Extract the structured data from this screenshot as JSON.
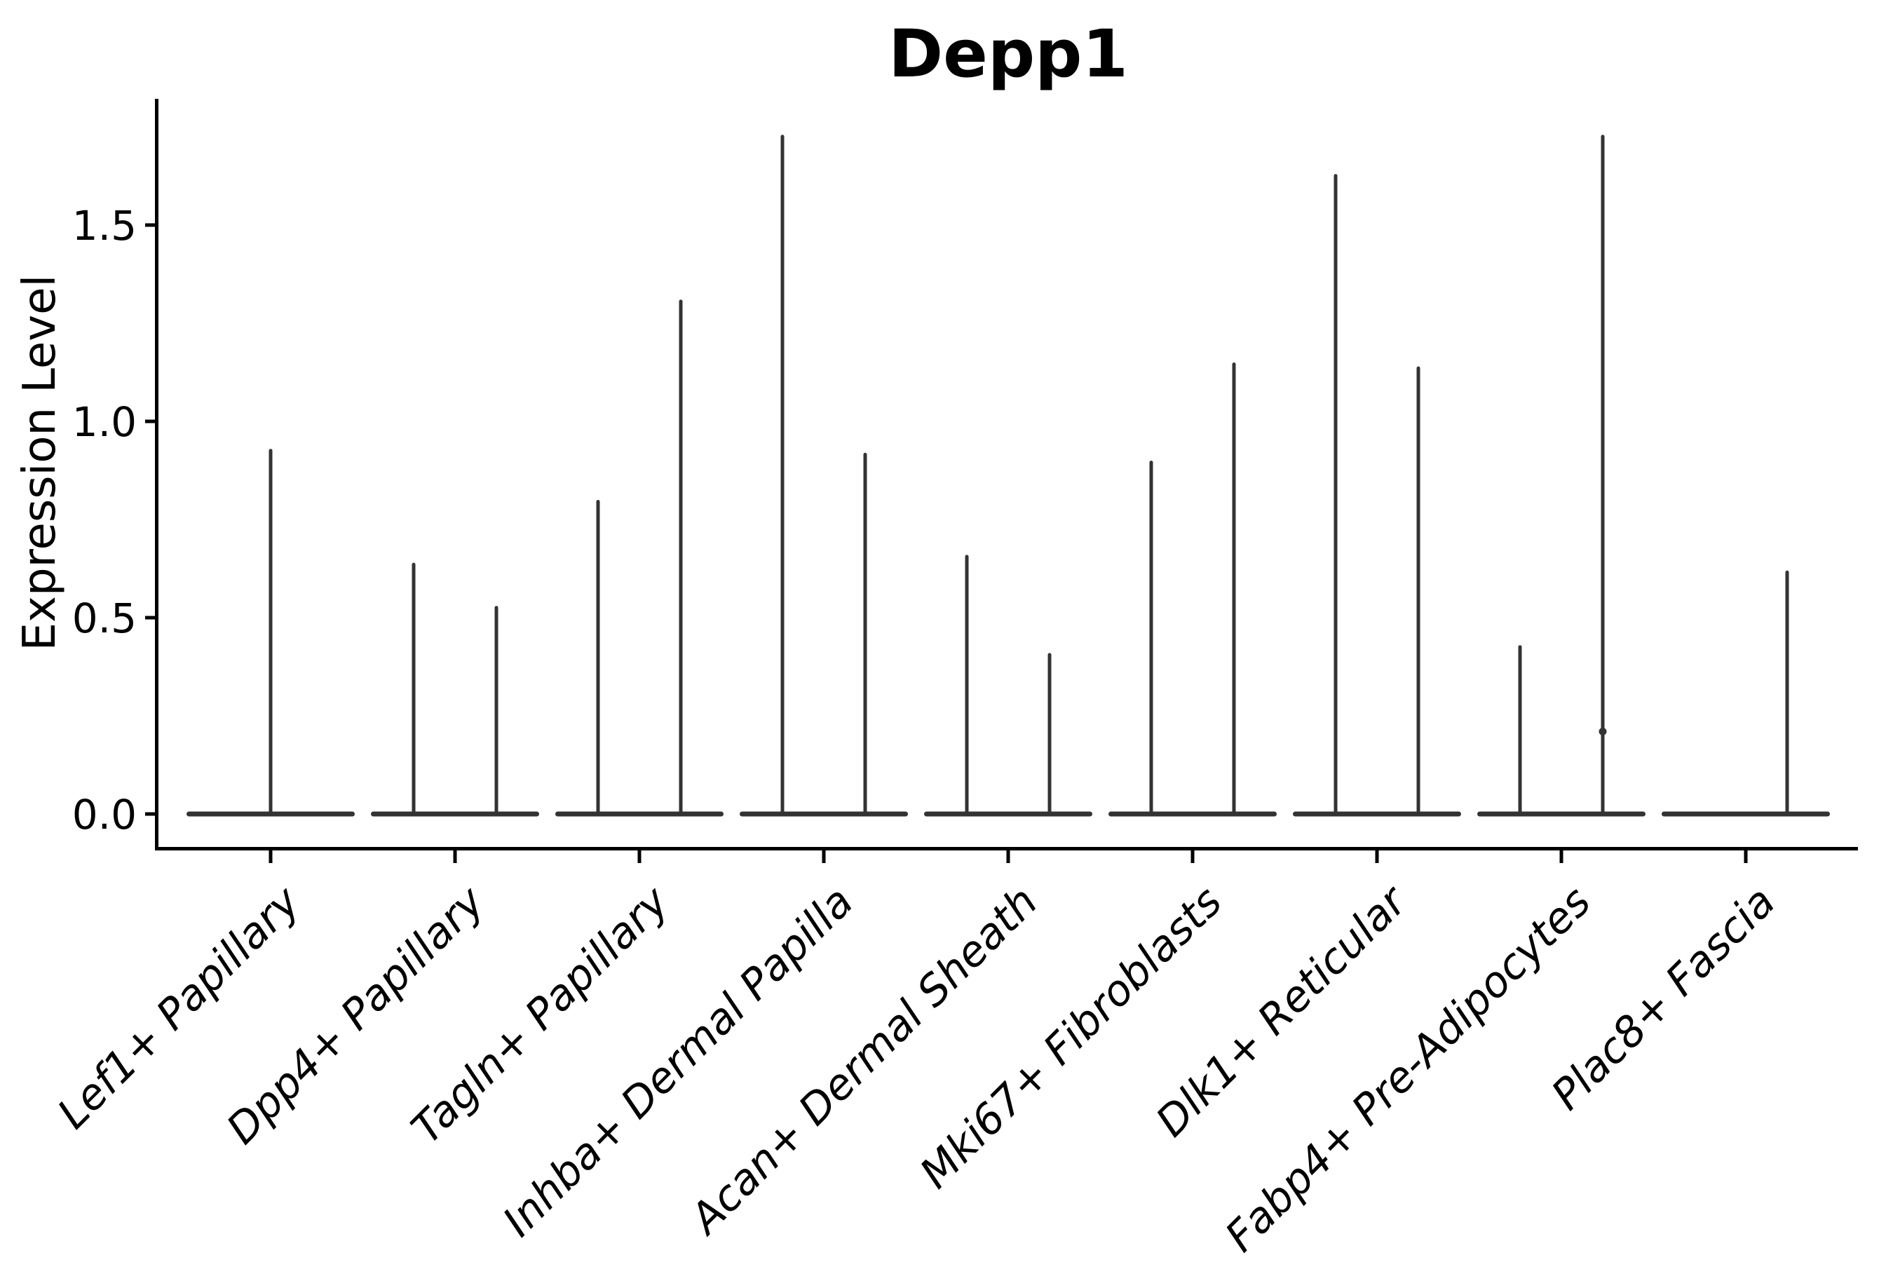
{
  "figure": {
    "background": "#ffffff"
  },
  "chart_data": {
    "type": "violin",
    "title": "Depp1",
    "xlabel": "",
    "ylabel": "Expression Level",
    "ylim": [
      -0.09,
      1.82
    ],
    "yticks": [
      0,
      0.5,
      1,
      1.5
    ],
    "ytick_labels": [
      "0.0",
      "0.5",
      "1.0",
      "1.5"
    ],
    "grid": false,
    "legend": null,
    "categories": [
      "Lef1+ Papillary",
      "Dpp4+ Papillary",
      "Tagln+ Papillary",
      "Inhba+ Dermal Papilla",
      "Acan+ Dermal Sheath",
      "Mki67+ Fibroblasts",
      "Dlk1+ Reticular",
      "Fabp4+ Pre-Adipocytes",
      "Plac8+ Fascia"
    ],
    "violins": [
      {
        "category": "Lef1+ Papillary",
        "spikes": [
          {
            "position": "center",
            "max_expression": 0.93
          }
        ]
      },
      {
        "category": "Dpp4+ Papillary",
        "spikes": [
          {
            "position": "left",
            "max_expression": 0.64
          },
          {
            "position": "right",
            "max_expression": 0.53
          }
        ]
      },
      {
        "category": "Tagln+ Papillary",
        "spikes": [
          {
            "position": "left",
            "max_expression": 0.8
          },
          {
            "position": "right",
            "max_expression": 1.31
          }
        ]
      },
      {
        "category": "Inhba+ Dermal Papilla",
        "spikes": [
          {
            "position": "left",
            "max_expression": 1.73
          },
          {
            "position": "right",
            "max_expression": 0.92
          }
        ]
      },
      {
        "category": "Acan+ Dermal Sheath",
        "spikes": [
          {
            "position": "left",
            "max_expression": 0.66
          },
          {
            "position": "right",
            "max_expression": 0.41
          }
        ]
      },
      {
        "category": "Mki67+ Fibroblasts",
        "spikes": [
          {
            "position": "left",
            "max_expression": 0.9
          },
          {
            "position": "right",
            "max_expression": 1.15
          }
        ]
      },
      {
        "category": "Dlk1+ Reticular",
        "spikes": [
          {
            "position": "left",
            "max_expression": 1.63
          },
          {
            "position": "right",
            "max_expression": 1.14
          }
        ]
      },
      {
        "category": "Fabp4+ Pre-Adipocytes",
        "spikes": [
          {
            "position": "left",
            "max_expression": 0.43
          },
          {
            "position": "right",
            "max_expression": 1.73
          }
        ],
        "dot": {
          "position": "right",
          "value": 0.21
        }
      },
      {
        "category": "Plac8+ Fascia",
        "spikes": [
          {
            "position": "right",
            "max_expression": 0.62
          }
        ]
      }
    ],
    "colors": {
      "violin": "#333333",
      "axis": "#000000",
      "text": "#000000",
      "background": "#ffffff"
    }
  }
}
